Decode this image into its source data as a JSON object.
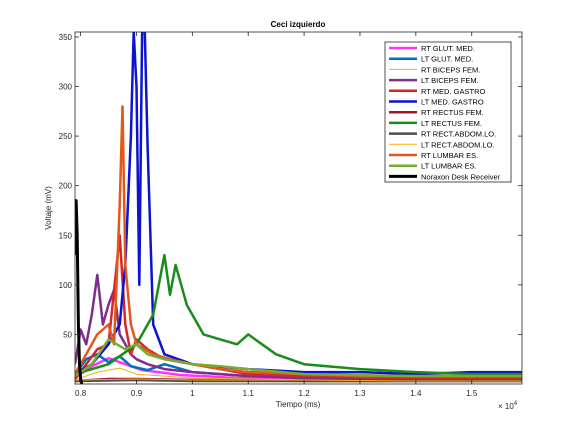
{
  "chart_data": {
    "type": "line",
    "title": "Ceci izquierdo",
    "xlabel": "Tiempo (ms)",
    "ylabel": "Voltaje (mV)",
    "x_exponent": "× 10",
    "x_exponent_power": "4",
    "xlim": [
      0.79,
      1.59
    ],
    "ylim": [
      0,
      355
    ],
    "xticks": [
      0.8,
      0.9,
      1,
      1.1,
      1.2,
      1.3,
      1.4,
      1.5
    ],
    "xtick_labels": [
      "0.8",
      "0.9",
      "1",
      "1.1",
      "1.2",
      "1.3",
      "1.4",
      "1.5"
    ],
    "yticks": [
      50,
      100,
      150,
      200,
      250,
      300,
      350
    ],
    "ytick_labels": [
      "50",
      "100",
      "150",
      "200",
      "250",
      "300",
      "350"
    ],
    "grid": false,
    "legend_position": "top-right",
    "series": [
      {
        "name": "RT GLUT. MED.",
        "color": "#ff33ff",
        "width": 2.5,
        "x": [
          0.79,
          0.82,
          0.85,
          0.88,
          0.91,
          0.94,
          0.98,
          1.02,
          1.08,
          1.15,
          1.25,
          1.35,
          1.45,
          1.59
        ],
        "values": [
          6,
          18,
          26,
          20,
          14,
          12,
          9,
          8,
          6,
          5,
          5,
          4,
          4,
          4
        ]
      },
      {
        "name": "LT GLUT. MED.",
        "color": "#0072bd",
        "width": 2.5,
        "x": [
          0.79,
          0.81,
          0.83,
          0.85,
          0.87,
          0.89,
          0.92,
          0.95,
          1.0,
          1.05,
          1.1,
          1.2,
          1.3,
          1.4,
          1.5,
          1.59
        ],
        "values": [
          10,
          25,
          30,
          22,
          28,
          18,
          14,
          20,
          12,
          10,
          8,
          7,
          6,
          6,
          6,
          6
        ]
      },
      {
        "name": "RT BICEPS FEM.",
        "color": "#edb120",
        "width": 1,
        "x": [
          0.79,
          0.83,
          0.87,
          0.9,
          0.95,
          1.0,
          1.1,
          1.2,
          1.3,
          1.4,
          1.5,
          1.59
        ],
        "values": [
          4,
          12,
          16,
          10,
          8,
          6,
          5,
          4,
          4,
          3,
          3,
          3
        ]
      },
      {
        "name": "LT BICEPS FEM.",
        "color": "#7e2f8e",
        "width": 2.5,
        "x": [
          0.79,
          0.8,
          0.81,
          0.82,
          0.83,
          0.84,
          0.85,
          0.86,
          0.87,
          0.88,
          0.89,
          0.9,
          0.92,
          0.95,
          1.0,
          1.05,
          1.1,
          1.2,
          1.3,
          1.4,
          1.59
        ],
        "values": [
          20,
          55,
          40,
          70,
          110,
          60,
          80,
          95,
          50,
          40,
          30,
          25,
          20,
          15,
          12,
          10,
          8,
          6,
          5,
          5,
          5
        ]
      },
      {
        "name": "RT MED. GASTRO",
        "color": "#d62728",
        "width": 2.5,
        "x": [
          0.79,
          0.81,
          0.83,
          0.85,
          0.87,
          0.88,
          0.89,
          0.9,
          0.92,
          0.95,
          1.0,
          1.05,
          1.1,
          1.2,
          1.3,
          1.4,
          1.5,
          1.59
        ],
        "values": [
          5,
          20,
          35,
          40,
          150,
          60,
          30,
          45,
          35,
          25,
          20,
          15,
          10,
          8,
          7,
          6,
          6,
          6
        ]
      },
      {
        "name": "LT MED. GASTRO",
        "color": "#0a14d2",
        "width": 2.5,
        "x": [
          0.79,
          0.82,
          0.85,
          0.87,
          0.88,
          0.89,
          0.895,
          0.9,
          0.905,
          0.91,
          0.915,
          0.92,
          0.93,
          0.95,
          1.0,
          1.1,
          1.2,
          1.3,
          1.4,
          1.5,
          1.59
        ],
        "values": [
          10,
          20,
          40,
          60,
          120,
          250,
          355,
          300,
          100,
          355,
          355,
          240,
          60,
          30,
          20,
          15,
          12,
          12,
          10,
          12,
          12
        ]
      },
      {
        "name": "RT RECTUS FEM.",
        "color": "#a2142f",
        "width": 2.5,
        "x": [
          0.79,
          0.85,
          0.9,
          1.0,
          1.2,
          1.4,
          1.59
        ],
        "values": [
          3,
          5,
          5,
          4,
          3,
          3,
          3
        ]
      },
      {
        "name": "LT RECTUS FEM.",
        "color": "#1a8c1a",
        "width": 2.5,
        "x": [
          0.79,
          0.85,
          0.9,
          0.93,
          0.95,
          0.96,
          0.97,
          0.98,
          0.99,
          1.0,
          1.02,
          1.05,
          1.08,
          1.1,
          1.15,
          1.2,
          1.3,
          1.4,
          1.5,
          1.59
        ],
        "values": [
          10,
          20,
          40,
          70,
          130,
          90,
          120,
          100,
          80,
          70,
          50,
          45,
          40,
          50,
          30,
          20,
          15,
          12,
          10,
          10
        ]
      },
      {
        "name": "RT RECT.ABDOM.LO.",
        "color": "#4d4d4d",
        "width": 2.5,
        "x": [
          0.79,
          0.9,
          1.0,
          1.2,
          1.4,
          1.59
        ],
        "values": [
          3,
          4,
          3,
          3,
          3,
          3
        ]
      },
      {
        "name": "LT RECT.ABDOM.LO.",
        "color": "#ffb000",
        "width": 1,
        "x": [
          0.79,
          0.9,
          1.0,
          1.2,
          1.4,
          1.59
        ],
        "values": [
          4,
          5,
          4,
          4,
          3,
          3
        ]
      },
      {
        "name": "RT LUMBAR ES.",
        "color": "#e3571c",
        "width": 2.5,
        "x": [
          0.79,
          0.81,
          0.83,
          0.85,
          0.86,
          0.87,
          0.875,
          0.88,
          0.89,
          0.9,
          0.93,
          0.96,
          1.0,
          1.05,
          1.1,
          1.2,
          1.3,
          1.4,
          1.5,
          1.59
        ],
        "values": [
          10,
          30,
          50,
          60,
          40,
          180,
          280,
          120,
          60,
          40,
          30,
          25,
          20,
          15,
          12,
          10,
          8,
          8,
          8,
          8
        ]
      },
      {
        "name": "LT LUMBAR ES.",
        "color": "#77ac30",
        "width": 2.5,
        "x": [
          0.79,
          0.82,
          0.85,
          0.88,
          0.9,
          0.92,
          0.95,
          1.0,
          1.05,
          1.1,
          1.2,
          1.3,
          1.4,
          1.5,
          1.59
        ],
        "values": [
          8,
          20,
          45,
          35,
          40,
          30,
          25,
          20,
          18,
          15,
          10,
          9,
          8,
          8,
          8
        ]
      },
      {
        "name": "Noraxon Desk Receiver",
        "color": "#000000",
        "width": 3,
        "x": [
          0.79,
          0.792,
          0.794,
          0.796,
          0.798,
          0.8,
          0.802,
          0.804
        ],
        "values": [
          130,
          185,
          150,
          60,
          20,
          5,
          0,
          0
        ]
      }
    ]
  }
}
